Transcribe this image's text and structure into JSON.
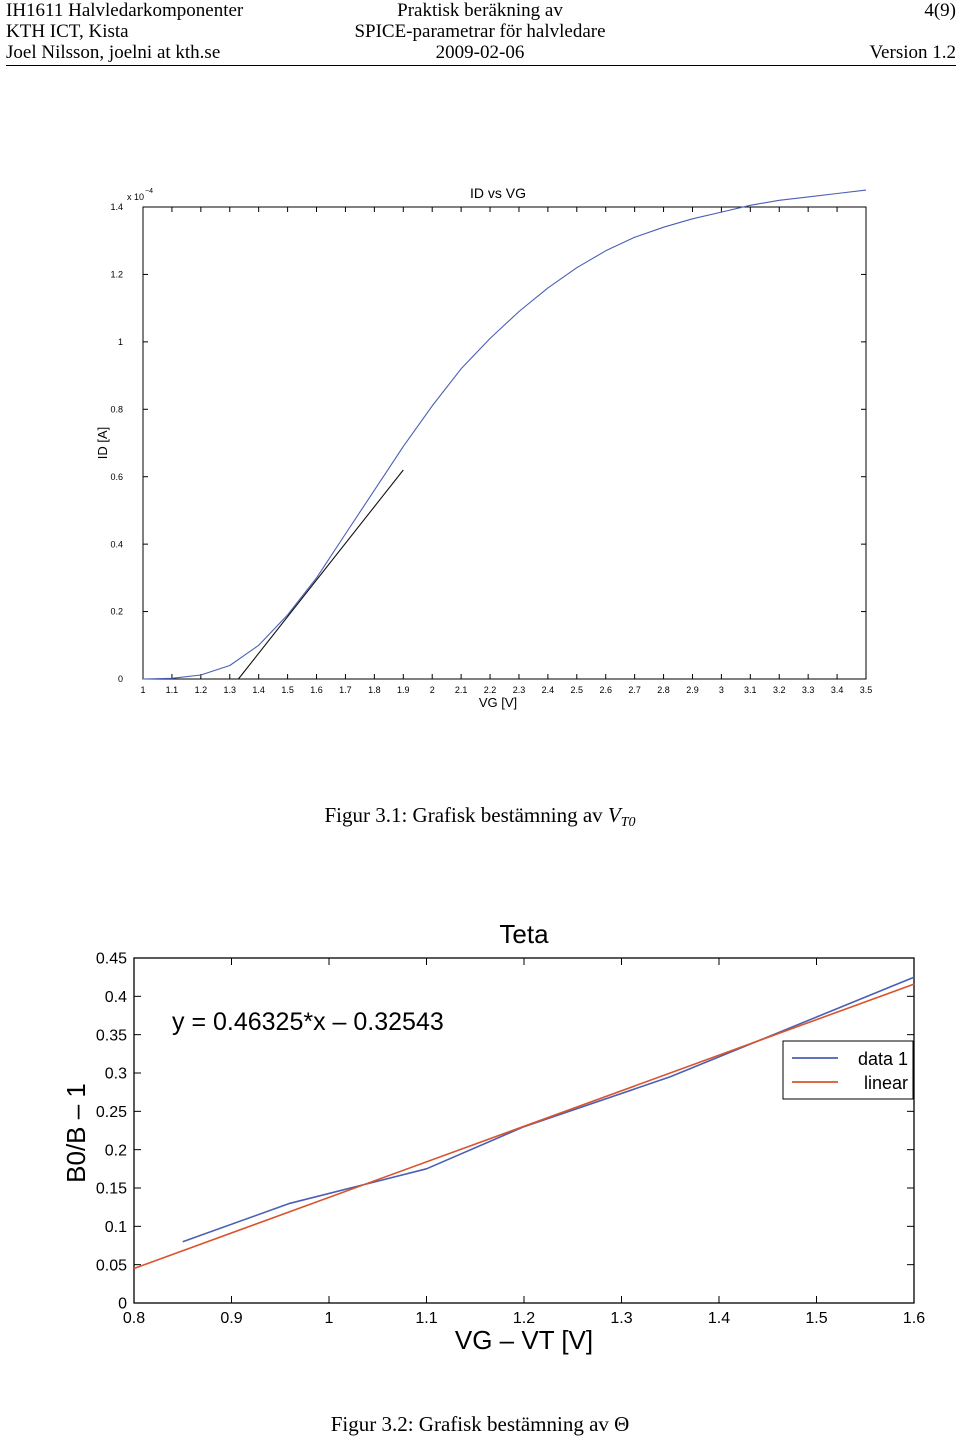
{
  "header": {
    "row1": {
      "left": "IH1611 Halvledarkomponenter",
      "center": "Praktisk beräkning av",
      "right": "4(9)"
    },
    "row2": {
      "left": "KTH ICT, Kista",
      "center": "SPICE-parametrar för halvledare"
    },
    "row3": {
      "left": "Joel Nilsson, joelni at kth.se",
      "center": "2009-02-06",
      "right": "Version 1.2"
    }
  },
  "figure1": {
    "caption_prefix": "Figur 3.1: Grafisk bestämning av ",
    "caption_symbol": "V",
    "caption_subscript": "T0"
  },
  "figure2": {
    "caption": "Figur 3.2: Grafisk bestämning av Θ"
  },
  "colors": {
    "blue": "#4a5fb5",
    "red": "#d9542c",
    "black": "#000000",
    "tangent": "#111111"
  },
  "chart_data": [
    {
      "type": "line",
      "title": "ID vs VG",
      "xlabel": "VG [V]",
      "ylabel": "ID [A]",
      "y_exponent_label": "x 10",
      "y_exponent_power": "−4",
      "xlim": [
        1,
        3.5
      ],
      "ylim": [
        0,
        1.4
      ],
      "x_ticks": [
        "1",
        "1.1",
        "1.2",
        "1.3",
        "1.4",
        "1.5",
        "1.6",
        "1.7",
        "1.8",
        "1.9",
        "2",
        "2.1",
        "2.2",
        "2.3",
        "2.4",
        "2.5",
        "2.6",
        "2.7",
        "2.8",
        "2.9",
        "3",
        "3.1",
        "3.2",
        "3.3",
        "3.4",
        "3.5"
      ],
      "y_ticks": [
        "0",
        "0.2",
        "0.4",
        "0.6",
        "0.8",
        "1",
        "1.2",
        "1.4"
      ],
      "grid": false,
      "series": [
        {
          "x": [
            1.0,
            1.1,
            1.2,
            1.3,
            1.4,
            1.5,
            1.6,
            1.7,
            1.8,
            1.9,
            2.0,
            2.1,
            2.2,
            2.3,
            2.4,
            2.5,
            2.6,
            2.7,
            2.8,
            2.9,
            3.0,
            3.1,
            3.2,
            3.3,
            3.4,
            3.5
          ],
          "y": [
            0.0,
            0.002,
            0.012,
            0.04,
            0.1,
            0.19,
            0.3,
            0.43,
            0.56,
            0.69,
            0.81,
            0.92,
            1.01,
            1.09,
            1.16,
            1.22,
            1.27,
            1.31,
            1.34,
            1.365,
            1.385,
            1.405,
            1.42,
            1.43,
            1.44,
            1.45
          ]
        },
        {
          "x": [
            1.33,
            1.9
          ],
          "y": [
            0.0,
            0.62
          ]
        }
      ]
    },
    {
      "type": "line",
      "title": "Teta",
      "xlabel": "VG – VT [V]",
      "ylabel": "B0/B – 1",
      "xlim": [
        0.8,
        1.6
      ],
      "ylim": [
        0,
        0.45
      ],
      "x_ticks": [
        "0.8",
        "0.9",
        "1",
        "1.1",
        "1.2",
        "1.3",
        "1.4",
        "1.5",
        "1.6"
      ],
      "y_ticks": [
        "0",
        "0.05",
        "0.1",
        "0.15",
        "0.2",
        "0.25",
        "0.3",
        "0.35",
        "0.4",
        "0.45"
      ],
      "annotation": "y = 0.46325*x – 0.32543",
      "legend_position": "top-right",
      "grid": false,
      "series": [
        {
          "name": "data 1",
          "x": [
            0.85,
            0.96,
            1.1,
            1.2,
            1.35,
            1.6
          ],
          "y": [
            0.08,
            0.13,
            0.175,
            0.23,
            0.295,
            0.425
          ]
        },
        {
          "name": "linear",
          "x": [
            0.8,
            1.6
          ],
          "y": [
            0.045,
            0.416
          ]
        }
      ]
    }
  ]
}
